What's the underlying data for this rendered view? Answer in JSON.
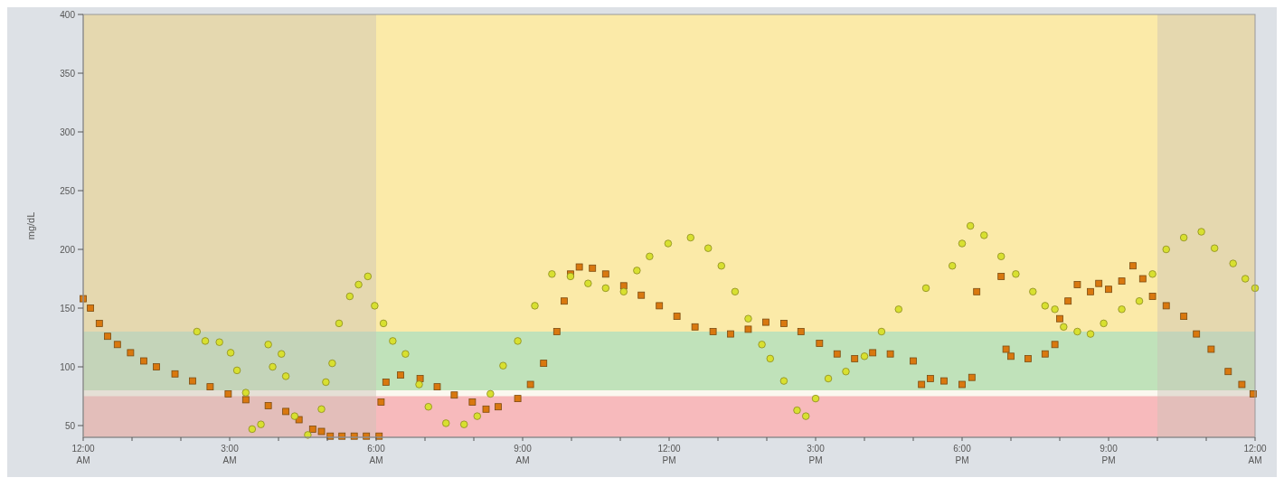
{
  "chart_data": {
    "type": "scatter",
    "ylabel": "mg/dL",
    "xlim": [
      0,
      24
    ],
    "ylim": [
      40,
      400
    ],
    "yticks": [
      50,
      100,
      150,
      200,
      250,
      300,
      350,
      400
    ],
    "xticks": [
      {
        "value": 0,
        "label": "12:00 AM"
      },
      {
        "value": 1,
        "label": null
      },
      {
        "value": 2,
        "label": null
      },
      {
        "value": 3,
        "label": "3:00 AM"
      },
      {
        "value": 4,
        "label": null
      },
      {
        "value": 5,
        "label": null
      },
      {
        "value": 6,
        "label": "6:00 AM"
      },
      {
        "value": 7,
        "label": null
      },
      {
        "value": 8,
        "label": null
      },
      {
        "value": 9,
        "label": "9:00 AM"
      },
      {
        "value": 10,
        "label": null
      },
      {
        "value": 11,
        "label": null
      },
      {
        "value": 12,
        "label": "12:00 PM"
      },
      {
        "value": 13,
        "label": null
      },
      {
        "value": 14,
        "label": null
      },
      {
        "value": 15,
        "label": "3:00 PM"
      },
      {
        "value": 16,
        "label": null
      },
      {
        "value": 17,
        "label": null
      },
      {
        "value": 18,
        "label": "6:00 PM"
      },
      {
        "value": 19,
        "label": null
      },
      {
        "value": 20,
        "label": null
      },
      {
        "value": 21,
        "label": "9:00 PM"
      },
      {
        "value": 22,
        "label": null
      },
      {
        "value": 23,
        "label": null
      },
      {
        "value": 24,
        "label": "12:00 AM"
      }
    ],
    "bands": [
      {
        "axis": "y",
        "from": 130,
        "to": 400,
        "color": "#fbe8a0"
      },
      {
        "axis": "y",
        "from": 80,
        "to": 130,
        "color": "#b9dfb4"
      },
      {
        "axis": "y",
        "from": 40,
        "to": 75,
        "color": "#f6b3b6"
      },
      {
        "axis": "x",
        "from": 0,
        "to": 6,
        "color": "#c9c3b8"
      },
      {
        "axis": "x",
        "from": 22,
        "to": 24,
        "color": "#c9c3b8"
      }
    ],
    "series": [
      {
        "color": "#d9780f",
        "marker": "square",
        "x": [
          0,
          0.15,
          0.33,
          0.5,
          0.7,
          0.97,
          1.24,
          1.5,
          1.88,
          2.24,
          2.6,
          2.97,
          3.33,
          3.79,
          4.15,
          4.42,
          4.7,
          4.88,
          5.06,
          5.3,
          5.55,
          5.8,
          6.06,
          6.1,
          6.2,
          6.5,
          6.9,
          7.25,
          7.6,
          7.97,
          8.25,
          8.5,
          8.9,
          9.16,
          9.43,
          9.7,
          9.85,
          9.98,
          10.16,
          10.43,
          10.7,
          11.07,
          11.43,
          11.8,
          12.16,
          12.53,
          12.9,
          13.26,
          13.62,
          13.98,
          14.35,
          14.7,
          15.08,
          15.44,
          15.8,
          16.17,
          16.53,
          17,
          17.17,
          17.35,
          17.63,
          18,
          18.2,
          18.3,
          18.8,
          18.9,
          19,
          19.35,
          19.7,
          19.9,
          20,
          20.17,
          20.36,
          20.63,
          20.8,
          21,
          21.27,
          21.5,
          21.7,
          21.9,
          22.18,
          22.54,
          22.8,
          23.1,
          23.45,
          23.73,
          23.96
        ],
        "values": [
          158,
          150,
          137,
          126,
          119,
          112,
          105,
          100,
          94,
          88,
          83,
          77,
          72,
          67,
          62,
          55,
          47,
          45,
          41,
          41,
          41,
          41,
          41,
          70,
          87,
          93,
          90,
          83,
          76,
          70,
          64,
          66,
          73,
          85,
          103,
          130,
          156,
          179,
          185,
          184,
          179,
          169,
          161,
          152,
          143,
          134,
          130,
          128,
          132,
          138,
          137,
          130,
          120,
          111,
          107,
          112,
          111,
          105,
          85,
          90,
          88,
          85,
          91,
          164,
          177,
          115,
          109,
          107,
          111,
          119,
          141,
          156,
          170,
          164,
          171,
          166,
          173,
          186,
          175,
          160,
          152,
          143,
          128,
          115,
          96,
          85,
          77
        ]
      },
      {
        "color": "#d8e030",
        "marker": "circle",
        "x": [
          2.33,
          2.5,
          2.79,
          3.02,
          3.15,
          3.33,
          3.46,
          3.64,
          3.79,
          3.88,
          4.06,
          4.15,
          4.33,
          4.6,
          4.88,
          4.97,
          5.1,
          5.24,
          5.46,
          5.64,
          5.83,
          5.97,
          6.15,
          6.34,
          6.6,
          6.88,
          7.07,
          7.43,
          7.8,
          8.07,
          8.34,
          8.6,
          8.9,
          9.25,
          9.6,
          9.98,
          10.34,
          10.7,
          11.07,
          11.34,
          11.6,
          11.98,
          12.44,
          12.8,
          13.07,
          13.35,
          13.62,
          13.9,
          14.07,
          14.35,
          14.62,
          14.8,
          15,
          15.26,
          15.62,
          16,
          16.35,
          16.7,
          17.26,
          17.8,
          18,
          18.17,
          18.45,
          18.8,
          19.1,
          19.45,
          19.7,
          19.9,
          20.08,
          20.36,
          20.63,
          20.9,
          21.27,
          21.63,
          21.9,
          22.18,
          22.54,
          22.9,
          23.17,
          23.55,
          23.8,
          24
        ],
        "values": [
          130,
          122,
          121,
          112,
          97,
          78,
          47,
          51,
          119,
          100,
          111,
          92,
          58,
          42,
          64,
          87,
          103,
          137,
          160,
          170,
          177,
          152,
          137,
          122,
          111,
          85,
          66,
          52,
          51,
          58,
          77,
          101,
          122,
          152,
          179,
          177,
          171,
          167,
          164,
          182,
          194,
          205,
          210,
          201,
          186,
          164,
          141,
          119,
          107,
          88,
          63,
          58,
          73,
          90,
          96,
          109,
          130,
          149,
          167,
          186,
          205,
          220,
          212,
          194,
          179,
          164,
          152,
          149,
          134,
          130,
          128,
          137,
          149,
          156,
          179,
          200,
          210,
          215,
          201,
          188,
          175,
          167
        ]
      }
    ]
  }
}
